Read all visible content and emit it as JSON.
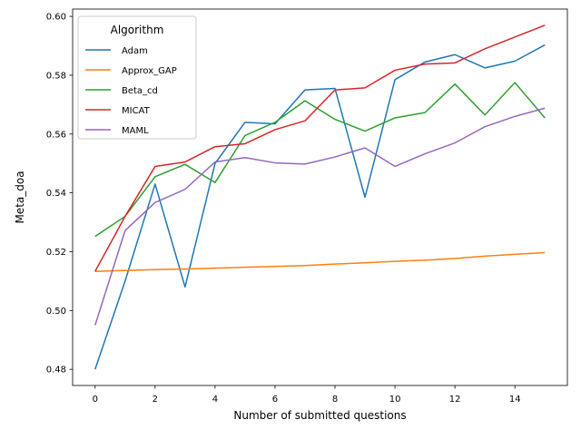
{
  "chart_data": {
    "type": "line",
    "xlabel": "Number of submitted questions",
    "ylabel": "Meta_doa",
    "xlim": [
      -0.75,
      15.75
    ],
    "ylim": [
      0.4745,
      0.6025
    ],
    "x_ticks": [
      0,
      2,
      4,
      6,
      8,
      10,
      12,
      14
    ],
    "y_ticks": [
      0.48,
      0.5,
      0.52,
      0.54,
      0.56,
      0.58,
      0.6
    ],
    "x_tick_labels": [
      "0",
      "2",
      "4",
      "6",
      "8",
      "10",
      "12",
      "14"
    ],
    "y_tick_labels": [
      "0.48",
      "0.50",
      "0.52",
      "0.54",
      "0.56",
      "0.58",
      "0.60"
    ],
    "grid": false,
    "legend": {
      "title": "Algorithm",
      "placement": "upper-left"
    },
    "x": [
      0,
      1,
      2,
      3,
      4,
      5,
      6,
      7,
      8,
      9,
      10,
      11,
      12,
      13,
      14,
      15
    ],
    "series": [
      {
        "name": "Adam",
        "color": "#1f77b4",
        "values": [
          0.48,
          0.51,
          0.543,
          0.508,
          0.55,
          0.564,
          0.5635,
          0.575,
          0.5755,
          0.5385,
          0.5785,
          0.5845,
          0.587,
          0.5825,
          0.5848,
          0.5903
        ]
      },
      {
        "name": "Approx_GAP",
        "color": "#ff7f0e",
        "values": [
          0.5133,
          0.5136,
          0.5139,
          0.5141,
          0.5144,
          0.5147,
          0.515,
          0.5153,
          0.5158,
          0.5162,
          0.5167,
          0.5171,
          0.5177,
          0.5185,
          0.5191,
          0.5197
        ]
      },
      {
        "name": "Beta_cd",
        "color": "#2ca02c",
        "values": [
          0.5252,
          0.532,
          0.5455,
          0.5497,
          0.5435,
          0.5595,
          0.564,
          0.5713,
          0.565,
          0.561,
          0.5655,
          0.5673,
          0.577,
          0.5665,
          0.5775,
          0.5655
        ]
      },
      {
        "name": "MICAT",
        "color": "#d62728",
        "values": [
          0.5133,
          0.532,
          0.549,
          0.5505,
          0.5557,
          0.5567,
          0.5615,
          0.5645,
          0.575,
          0.5757,
          0.5817,
          0.5838,
          0.5842,
          0.589,
          0.593,
          0.597
        ]
      },
      {
        "name": "MAML",
        "color": "#9467bd",
        "values": [
          0.495,
          0.5272,
          0.5367,
          0.5412,
          0.5505,
          0.552,
          0.5502,
          0.5498,
          0.5522,
          0.5553,
          0.549,
          0.5533,
          0.557,
          0.5625,
          0.566,
          0.5688
        ]
      }
    ]
  }
}
